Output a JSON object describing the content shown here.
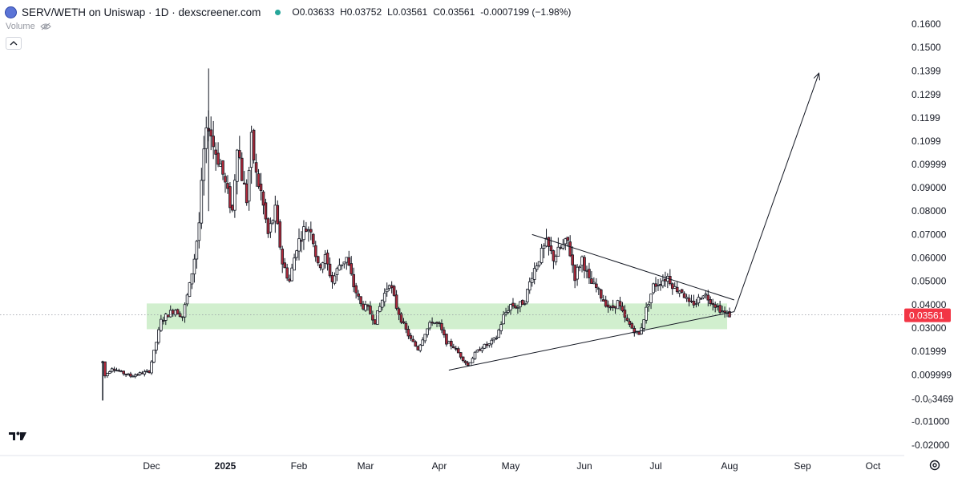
{
  "header": {
    "symbol_title": "SERV/WETH on Uniswap · 1D · dexscreener.com",
    "ohlc": {
      "open_label": "O",
      "open": "0.03633",
      "high_label": "H",
      "high": "0.03752",
      "low_label": "L",
      "low": "0.03561",
      "close_label": "C",
      "close": "0.03561",
      "change": "-0.0007199 (−1.98%)"
    },
    "volume_label": "Volume"
  },
  "price_tag": {
    "value": "0.03561",
    "color": "#f23645"
  },
  "colors": {
    "up": "#ffffff",
    "down": "#b0293a",
    "wick": "#131722",
    "zone": "#c9ecc5",
    "grid_dot": "#9598a1"
  },
  "icons": [
    "logo-icon",
    "eye-off-icon",
    "chevron-up-icon",
    "tradingview-logo-icon",
    "settings-icon"
  ],
  "chart_data": {
    "type": "candlestick",
    "y_axis_labels": [
      "0.1600",
      "0.1500",
      "0.1399",
      "0.1299",
      "0.1199",
      "0.1099",
      "0.09999",
      "0.09000",
      "0.08000",
      "0.07000",
      "0.06000",
      "0.05000",
      "0.04000",
      "0.03000",
      "0.01999",
      "0.009999",
      "-0.0₀3469",
      "-0.01000",
      "-0.02000"
    ],
    "y_axis_values": [
      0.16,
      0.15,
      0.1399,
      0.1299,
      0.1199,
      0.1099,
      0.09999,
      0.09,
      0.08,
      0.07,
      0.06,
      0.05,
      0.04,
      0.03,
      0.01999,
      0.009999,
      -0.0003469,
      -0.01,
      -0.02
    ],
    "x_axis_labels": [
      "Dec",
      "2025",
      "Feb",
      "Mar",
      "Apr",
      "May",
      "Jun",
      "Jul",
      "Aug",
      "Sep",
      "Oct"
    ],
    "x_axis_dates": [
      "2024-12-01",
      "2025-01-01",
      "2025-02-01",
      "2025-03-01",
      "2025-04-01",
      "2025-05-01",
      "2025-06-01",
      "2025-07-01",
      "2025-08-01",
      "2025-09-01",
      "2025-10-01"
    ],
    "ylim": [
      -0.024,
      0.163
    ],
    "last_price": 0.03561,
    "price_path": [
      [
        "2024-11-10",
        0.0155
      ],
      [
        "2024-11-11",
        0.0095
      ],
      [
        "2024-11-14",
        0.013
      ],
      [
        "2024-11-18",
        0.011
      ],
      [
        "2024-11-22",
        0.0095
      ],
      [
        "2024-11-26",
        0.0105
      ],
      [
        "2024-11-30",
        0.0115
      ],
      [
        "2024-12-03",
        0.024
      ],
      [
        "2024-12-05",
        0.033
      ],
      [
        "2024-12-08",
        0.036
      ],
      [
        "2024-12-11",
        0.038
      ],
      [
        "2024-12-14",
        0.035
      ],
      [
        "2024-12-17",
        0.048
      ],
      [
        "2024-12-19",
        0.06
      ],
      [
        "2024-12-21",
        0.075
      ],
      [
        "2024-12-23",
        0.105
      ],
      [
        "2024-12-25",
        0.118
      ],
      [
        "2024-12-27",
        0.108
      ],
      [
        "2024-12-30",
        0.1
      ],
      [
        "2025-01-02",
        0.087
      ],
      [
        "2025-01-04",
        0.08
      ],
      [
        "2025-01-06",
        0.11
      ],
      [
        "2025-01-08",
        0.095
      ],
      [
        "2025-01-10",
        0.085
      ],
      [
        "2025-01-12",
        0.11
      ],
      [
        "2025-01-14",
        0.095
      ],
      [
        "2025-01-16",
        0.088
      ],
      [
        "2025-01-19",
        0.07
      ],
      [
        "2025-01-22",
        0.08
      ],
      [
        "2025-01-25",
        0.058
      ],
      [
        "2025-01-28",
        0.05
      ],
      [
        "2025-01-31",
        0.065
      ],
      [
        "2025-02-03",
        0.072
      ],
      [
        "2025-02-06",
        0.073
      ],
      [
        "2025-02-09",
        0.056
      ],
      [
        "2025-02-12",
        0.06
      ],
      [
        "2025-02-15",
        0.05
      ],
      [
        "2025-02-18",
        0.057
      ],
      [
        "2025-02-21",
        0.06
      ],
      [
        "2025-02-24",
        0.048
      ],
      [
        "2025-02-27",
        0.04
      ],
      [
        "2025-03-02",
        0.038
      ],
      [
        "2025-03-05",
        0.033
      ],
      [
        "2025-03-08",
        0.042
      ],
      [
        "2025-03-11",
        0.05
      ],
      [
        "2025-03-14",
        0.039
      ],
      [
        "2025-03-17",
        0.031
      ],
      [
        "2025-03-20",
        0.025
      ],
      [
        "2025-03-23",
        0.021
      ],
      [
        "2025-03-26",
        0.028
      ],
      [
        "2025-03-29",
        0.033
      ],
      [
        "2025-04-01",
        0.031
      ],
      [
        "2025-04-04",
        0.024
      ],
      [
        "2025-04-07",
        0.022
      ],
      [
        "2025-04-10",
        0.018
      ],
      [
        "2025-04-13",
        0.014
      ],
      [
        "2025-04-16",
        0.019
      ],
      [
        "2025-04-19",
        0.022
      ],
      [
        "2025-04-22",
        0.023
      ],
      [
        "2025-04-25",
        0.026
      ],
      [
        "2025-04-28",
        0.035
      ],
      [
        "2025-05-01",
        0.04
      ],
      [
        "2025-05-04",
        0.039
      ],
      [
        "2025-05-07",
        0.042
      ],
      [
        "2025-05-10",
        0.053
      ],
      [
        "2025-05-13",
        0.06
      ],
      [
        "2025-05-16",
        0.066
      ],
      [
        "2025-05-19",
        0.06
      ],
      [
        "2025-05-22",
        0.064
      ],
      [
        "2025-05-25",
        0.067
      ],
      [
        "2025-05-28",
        0.052
      ],
      [
        "2025-05-31",
        0.06
      ],
      [
        "2025-06-03",
        0.05
      ],
      [
        "2025-06-06",
        0.047
      ],
      [
        "2025-06-09",
        0.042
      ],
      [
        "2025-06-12",
        0.038
      ],
      [
        "2025-06-15",
        0.041
      ],
      [
        "2025-06-18",
        0.034
      ],
      [
        "2025-06-21",
        0.03
      ],
      [
        "2025-06-24",
        0.027
      ],
      [
        "2025-06-27",
        0.038
      ],
      [
        "2025-06-30",
        0.048
      ],
      [
        "2025-07-03",
        0.05
      ],
      [
        "2025-07-06",
        0.052
      ],
      [
        "2025-07-09",
        0.047
      ],
      [
        "2025-07-12",
        0.046
      ],
      [
        "2025-07-15",
        0.04
      ],
      [
        "2025-07-18",
        0.041
      ],
      [
        "2025-07-21",
        0.045
      ],
      [
        "2025-07-24",
        0.042
      ],
      [
        "2025-07-27",
        0.039
      ],
      [
        "2025-07-30",
        0.0363
      ],
      [
        "2025-08-01",
        0.0356
      ]
    ],
    "annotations": {
      "support_zone": {
        "x_from": "2024-12-01",
        "x_to": "2025-07-31",
        "y_from": 0.0295,
        "y_to": 0.0405,
        "color": "#c9ecc5"
      },
      "upper_trendline": {
        "from": [
          "2025-05-10",
          0.07
        ],
        "to": [
          "2025-08-03",
          0.042
        ]
      },
      "lower_trendline": {
        "from": [
          "2025-04-05",
          0.012
        ],
        "to": [
          "2025-08-03",
          0.037
        ]
      },
      "projection_arrow": {
        "from": [
          "2025-08-03",
          0.037
        ],
        "to": [
          "2025-09-08",
          0.139
        ]
      }
    }
  }
}
